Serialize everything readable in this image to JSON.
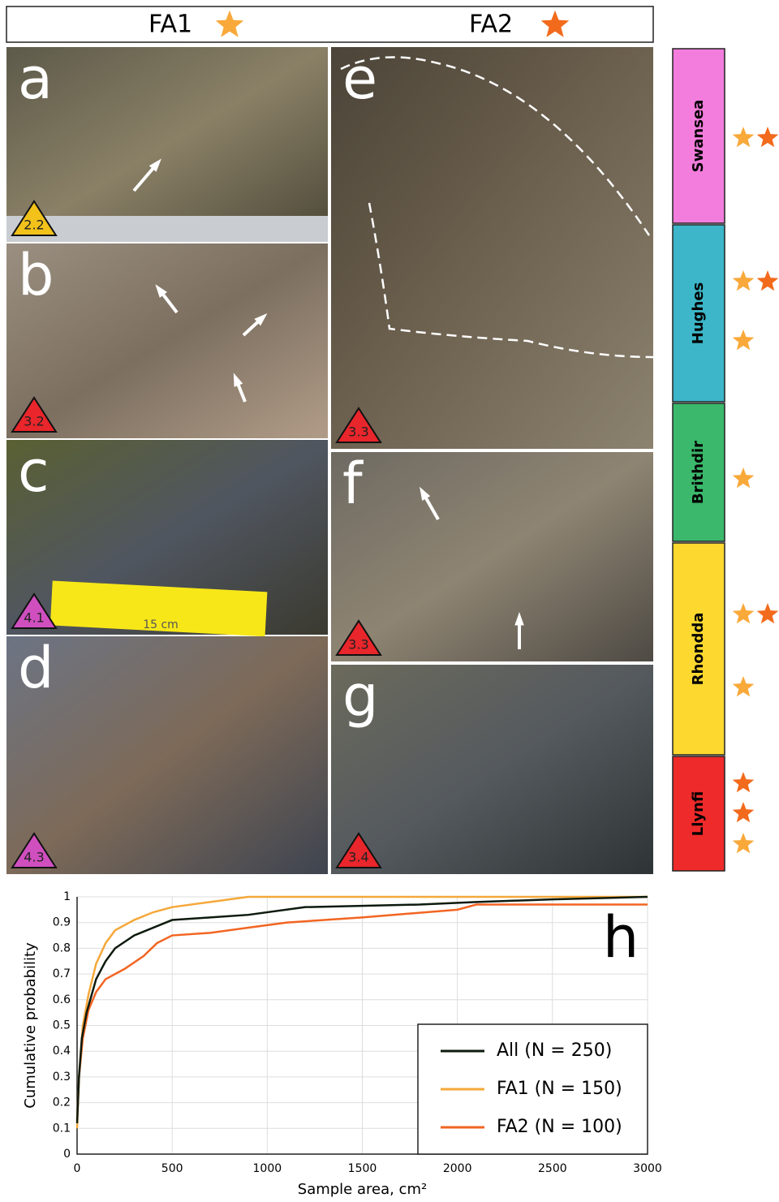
{
  "header": {
    "fa1": "FA1",
    "fa2": "FA2"
  },
  "panels": [
    {
      "letter": "a",
      "badge": "2.2",
      "badge_color": "#f2c21b"
    },
    {
      "letter": "b",
      "badge": "3.2",
      "badge_color": "#e8262b"
    },
    {
      "letter": "c",
      "badge": "4.1",
      "badge_color": "#cf4fbf",
      "scale_label": "15 cm"
    },
    {
      "letter": "d",
      "badge": "4.3",
      "badge_color": "#cf4fbf"
    },
    {
      "letter": "e",
      "badge": "3.3",
      "badge_color": "#e8262b"
    },
    {
      "letter": "f",
      "badge": "3.3",
      "badge_color": "#e8262b"
    },
    {
      "letter": "g",
      "badge": "3.4",
      "badge_color": "#e8262b"
    }
  ],
  "units": [
    {
      "name": "Swansea",
      "color": "#f27ddc"
    },
    {
      "name": "Hughes",
      "color": "#3cb6c8"
    },
    {
      "name": "Brithdir",
      "color": "#3bb86b"
    },
    {
      "name": "Rhondda",
      "color": "#fdd82f"
    },
    {
      "name": "Llynfi",
      "color": "#ee2a2a"
    }
  ],
  "chart_data": {
    "type": "line",
    "panel_label": "h",
    "xlabel": "Sample area, cm²",
    "ylabel": "Cumulative probability",
    "xlim": [
      0,
      3000
    ],
    "ylim": [
      0,
      1
    ],
    "xticks": [
      0,
      500,
      1000,
      1500,
      2000,
      2500,
      3000
    ],
    "yticks": [
      0,
      0.1,
      0.2,
      0.3,
      0.4,
      0.5,
      0.6,
      0.7,
      0.8,
      0.9,
      1
    ],
    "grid": true,
    "legend": "lower right",
    "series": [
      {
        "name": "All (N = 250)",
        "color": "#0d1a0d",
        "x": [
          0,
          10,
          25,
          50,
          100,
          150,
          200,
          300,
          400,
          500,
          700,
          900,
          1200,
          1800,
          2100,
          2500,
          3000
        ],
        "values": [
          0.12,
          0.3,
          0.45,
          0.55,
          0.68,
          0.75,
          0.8,
          0.85,
          0.88,
          0.91,
          0.92,
          0.93,
          0.96,
          0.97,
          0.98,
          0.99,
          1
        ]
      },
      {
        "name": "FA1 (N = 150)",
        "color": "#f5a83a",
        "x": [
          0,
          10,
          30,
          60,
          100,
          150,
          200,
          300,
          400,
          500,
          700,
          900,
          3000
        ],
        "values": [
          0.1,
          0.3,
          0.5,
          0.62,
          0.74,
          0.82,
          0.87,
          0.91,
          0.94,
          0.96,
          0.98,
          1,
          1
        ]
      },
      {
        "name": "FA2 (N = 100)",
        "color": "#f26522",
        "x": [
          0,
          10,
          30,
          60,
          100,
          150,
          250,
          350,
          420,
          500,
          700,
          900,
          1100,
          1500,
          2000,
          2100,
          3000
        ],
        "values": [
          0.13,
          0.3,
          0.45,
          0.56,
          0.63,
          0.68,
          0.72,
          0.77,
          0.82,
          0.85,
          0.86,
          0.88,
          0.9,
          0.92,
          0.95,
          0.97,
          0.97
        ]
      }
    ]
  }
}
